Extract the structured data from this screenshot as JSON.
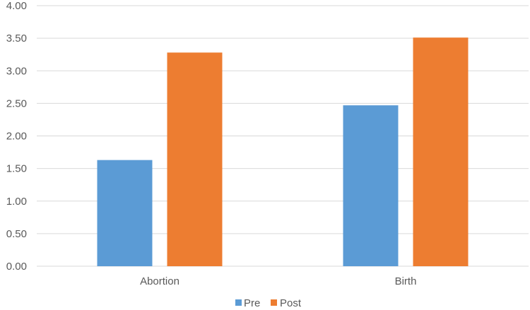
{
  "chart_data": {
    "type": "bar",
    "title": "",
    "xlabel": "",
    "ylabel": "",
    "categories": [
      "Abortion",
      "Birth"
    ],
    "series": [
      {
        "name": "Pre",
        "values": [
          1.63,
          2.47
        ],
        "color": "#5B9BD5"
      },
      {
        "name": "Post",
        "values": [
          3.28,
          3.51
        ],
        "color": "#ED7D31"
      }
    ],
    "ylim": [
      0,
      4
    ],
    "yticks": [
      "0.00",
      "0.50",
      "1.00",
      "1.50",
      "2.00",
      "2.50",
      "3.00",
      "3.50",
      "4.00"
    ],
    "grid": true,
    "legend_position": "bottom",
    "grid_color": "#D9D9D9",
    "text_color": "#595959"
  }
}
